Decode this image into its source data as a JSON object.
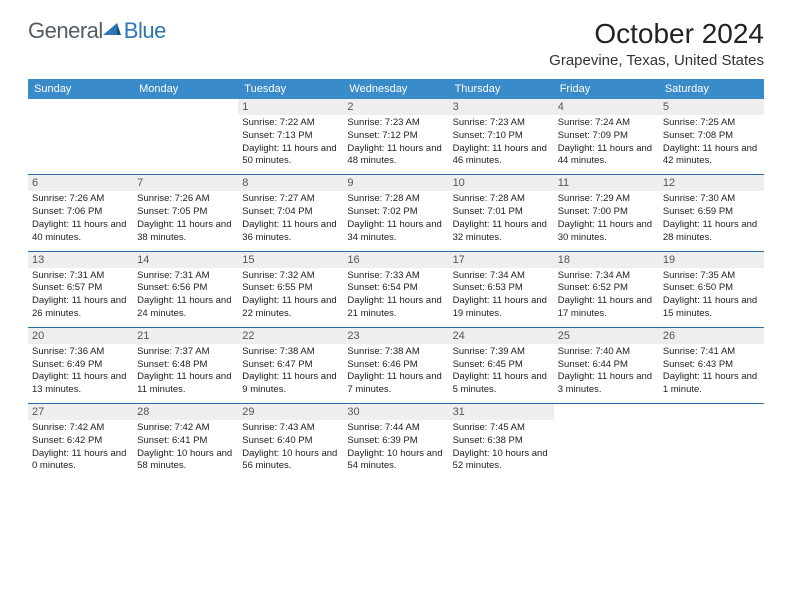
{
  "logo": {
    "text1": "General",
    "text2": "Blue"
  },
  "title": "October 2024",
  "location": "Grapevine, Texas, United States",
  "colors": {
    "header_bg": "#3a8bc9",
    "week_divider": "#2e6ea5",
    "daynum_bg": "#eeeeee",
    "logo_gray": "#555d63",
    "logo_blue": "#2e75b6"
  },
  "day_labels": [
    "Sunday",
    "Monday",
    "Tuesday",
    "Wednesday",
    "Thursday",
    "Friday",
    "Saturday"
  ],
  "weeks": [
    [
      null,
      null,
      {
        "n": "1",
        "sunrise": "7:22 AM",
        "sunset": "7:13 PM",
        "daylight": "11 hours and 50 minutes."
      },
      {
        "n": "2",
        "sunrise": "7:23 AM",
        "sunset": "7:12 PM",
        "daylight": "11 hours and 48 minutes."
      },
      {
        "n": "3",
        "sunrise": "7:23 AM",
        "sunset": "7:10 PM",
        "daylight": "11 hours and 46 minutes."
      },
      {
        "n": "4",
        "sunrise": "7:24 AM",
        "sunset": "7:09 PM",
        "daylight": "11 hours and 44 minutes."
      },
      {
        "n": "5",
        "sunrise": "7:25 AM",
        "sunset": "7:08 PM",
        "daylight": "11 hours and 42 minutes."
      }
    ],
    [
      {
        "n": "6",
        "sunrise": "7:26 AM",
        "sunset": "7:06 PM",
        "daylight": "11 hours and 40 minutes."
      },
      {
        "n": "7",
        "sunrise": "7:26 AM",
        "sunset": "7:05 PM",
        "daylight": "11 hours and 38 minutes."
      },
      {
        "n": "8",
        "sunrise": "7:27 AM",
        "sunset": "7:04 PM",
        "daylight": "11 hours and 36 minutes."
      },
      {
        "n": "9",
        "sunrise": "7:28 AM",
        "sunset": "7:02 PM",
        "daylight": "11 hours and 34 minutes."
      },
      {
        "n": "10",
        "sunrise": "7:28 AM",
        "sunset": "7:01 PM",
        "daylight": "11 hours and 32 minutes."
      },
      {
        "n": "11",
        "sunrise": "7:29 AM",
        "sunset": "7:00 PM",
        "daylight": "11 hours and 30 minutes."
      },
      {
        "n": "12",
        "sunrise": "7:30 AM",
        "sunset": "6:59 PM",
        "daylight": "11 hours and 28 minutes."
      }
    ],
    [
      {
        "n": "13",
        "sunrise": "7:31 AM",
        "sunset": "6:57 PM",
        "daylight": "11 hours and 26 minutes."
      },
      {
        "n": "14",
        "sunrise": "7:31 AM",
        "sunset": "6:56 PM",
        "daylight": "11 hours and 24 minutes."
      },
      {
        "n": "15",
        "sunrise": "7:32 AM",
        "sunset": "6:55 PM",
        "daylight": "11 hours and 22 minutes."
      },
      {
        "n": "16",
        "sunrise": "7:33 AM",
        "sunset": "6:54 PM",
        "daylight": "11 hours and 21 minutes."
      },
      {
        "n": "17",
        "sunrise": "7:34 AM",
        "sunset": "6:53 PM",
        "daylight": "11 hours and 19 minutes."
      },
      {
        "n": "18",
        "sunrise": "7:34 AM",
        "sunset": "6:52 PM",
        "daylight": "11 hours and 17 minutes."
      },
      {
        "n": "19",
        "sunrise": "7:35 AM",
        "sunset": "6:50 PM",
        "daylight": "11 hours and 15 minutes."
      }
    ],
    [
      {
        "n": "20",
        "sunrise": "7:36 AM",
        "sunset": "6:49 PM",
        "daylight": "11 hours and 13 minutes."
      },
      {
        "n": "21",
        "sunrise": "7:37 AM",
        "sunset": "6:48 PM",
        "daylight": "11 hours and 11 minutes."
      },
      {
        "n": "22",
        "sunrise": "7:38 AM",
        "sunset": "6:47 PM",
        "daylight": "11 hours and 9 minutes."
      },
      {
        "n": "23",
        "sunrise": "7:38 AM",
        "sunset": "6:46 PM",
        "daylight": "11 hours and 7 minutes."
      },
      {
        "n": "24",
        "sunrise": "7:39 AM",
        "sunset": "6:45 PM",
        "daylight": "11 hours and 5 minutes."
      },
      {
        "n": "25",
        "sunrise": "7:40 AM",
        "sunset": "6:44 PM",
        "daylight": "11 hours and 3 minutes."
      },
      {
        "n": "26",
        "sunrise": "7:41 AM",
        "sunset": "6:43 PM",
        "daylight": "11 hours and 1 minute."
      }
    ],
    [
      {
        "n": "27",
        "sunrise": "7:42 AM",
        "sunset": "6:42 PM",
        "daylight": "11 hours and 0 minutes."
      },
      {
        "n": "28",
        "sunrise": "7:42 AM",
        "sunset": "6:41 PM",
        "daylight": "10 hours and 58 minutes."
      },
      {
        "n": "29",
        "sunrise": "7:43 AM",
        "sunset": "6:40 PM",
        "daylight": "10 hours and 56 minutes."
      },
      {
        "n": "30",
        "sunrise": "7:44 AM",
        "sunset": "6:39 PM",
        "daylight": "10 hours and 54 minutes."
      },
      {
        "n": "31",
        "sunrise": "7:45 AM",
        "sunset": "6:38 PM",
        "daylight": "10 hours and 52 minutes."
      },
      null,
      null
    ]
  ]
}
